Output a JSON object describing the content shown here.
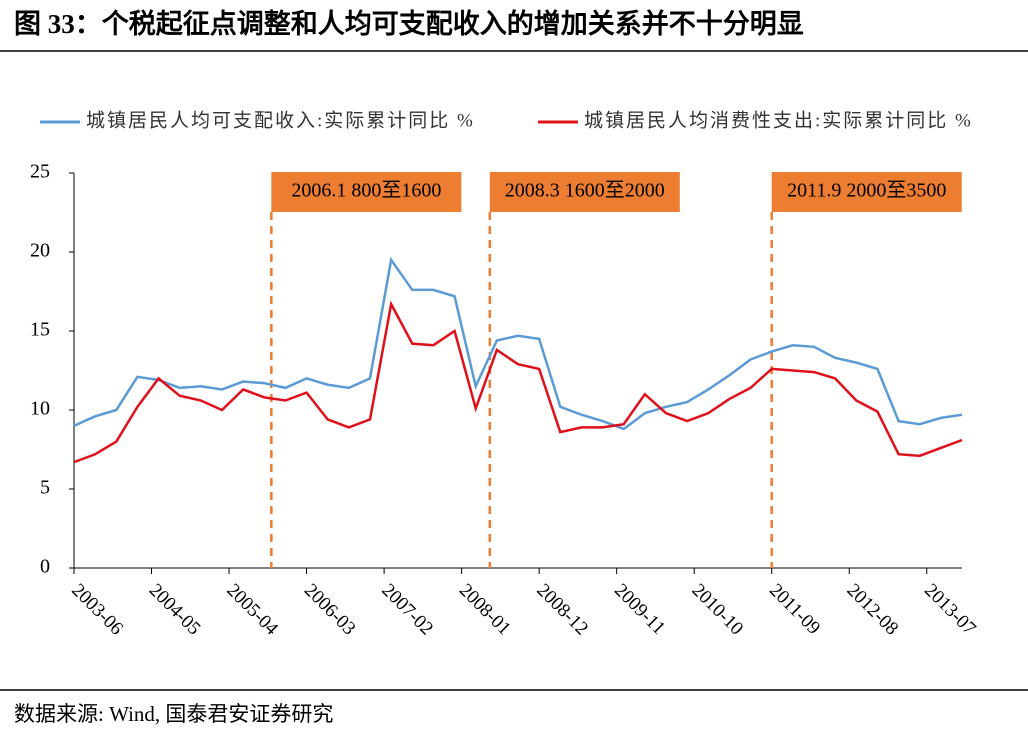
{
  "header": {
    "title": "图 33：个税起征点调整和人均可支配收入的增加关系并不十分明显"
  },
  "chart_data": {
    "type": "line",
    "x": [
      "2003-06",
      "2003-09",
      "2003-12",
      "2004-03",
      "2004-06",
      "2004-09",
      "2004-12",
      "2005-03",
      "2005-06",
      "2005-09",
      "2005-12",
      "2006-03",
      "2006-06",
      "2006-09",
      "2006-12",
      "2007-03",
      "2007-06",
      "2007-09",
      "2007-12",
      "2008-03",
      "2008-06",
      "2008-09",
      "2008-12",
      "2009-03",
      "2009-06",
      "2009-09",
      "2009-12",
      "2010-03",
      "2010-06",
      "2010-09",
      "2010-12",
      "2011-03",
      "2011-06",
      "2011-09",
      "2011-12",
      "2012-03",
      "2012-06",
      "2012-09",
      "2012-12",
      "2013-03",
      "2013-06",
      "2013-09",
      "2013-12"
    ],
    "series": [
      {
        "name": "城镇居民人均可支配收入:实际累计同比 %",
        "color": "#5b9bd5",
        "values": [
          9.0,
          9.6,
          10.0,
          12.1,
          11.9,
          11.4,
          11.5,
          11.3,
          11.8,
          11.7,
          11.4,
          12.0,
          11.6,
          11.4,
          12.0,
          19.5,
          17.6,
          17.6,
          17.2,
          11.5,
          14.4,
          14.7,
          14.5,
          10.2,
          9.7,
          9.3,
          8.8,
          9.8,
          10.2,
          10.5,
          11.3,
          12.2,
          13.2,
          13.7,
          14.1,
          14.0,
          13.3,
          13.0,
          12.6,
          9.3,
          9.1,
          9.5,
          9.7
        ]
      },
      {
        "name": "城镇居民人均消费性支出:实际累计同比 %",
        "color": "#e0101a",
        "values": [
          6.7,
          7.2,
          8.0,
          10.2,
          12.0,
          10.9,
          10.6,
          10.0,
          11.3,
          10.8,
          10.6,
          11.1,
          9.4,
          8.9,
          9.4,
          16.7,
          14.2,
          14.1,
          15.0,
          10.1,
          13.8,
          12.9,
          12.6,
          8.6,
          8.9,
          8.9,
          9.1,
          11.0,
          9.8,
          9.3,
          9.8,
          10.7,
          11.4,
          12.6,
          12.5,
          12.4,
          12.0,
          10.6,
          9.9,
          7.2,
          7.1,
          7.6,
          8.1
        ]
      }
    ],
    "xlim": [
      "2003-06",
      "2013-12"
    ],
    "xticks": [
      "2003-06",
      "2004-05",
      "2005-04",
      "2006-03",
      "2007-02",
      "2008-01",
      "2008-12",
      "2009-11",
      "2010-10",
      "2011-09",
      "2012-08",
      "2013-07"
    ],
    "ylim": [
      0,
      25
    ],
    "yticks": [
      0,
      5,
      10,
      15,
      20,
      25
    ],
    "annotations": [
      {
        "x": "2005-10",
        "label": "2006.1 800至1600",
        "color": "#ed7d31"
      },
      {
        "x": "2008-05",
        "label": "2008.3 1600至2000",
        "color": "#ed7d31"
      },
      {
        "x": "2011-09",
        "label": "2011.9 2000至3500",
        "color": "#ed7d31"
      }
    ]
  },
  "footer": {
    "source": "数据来源: Wind, 国泰君安证券研究"
  }
}
